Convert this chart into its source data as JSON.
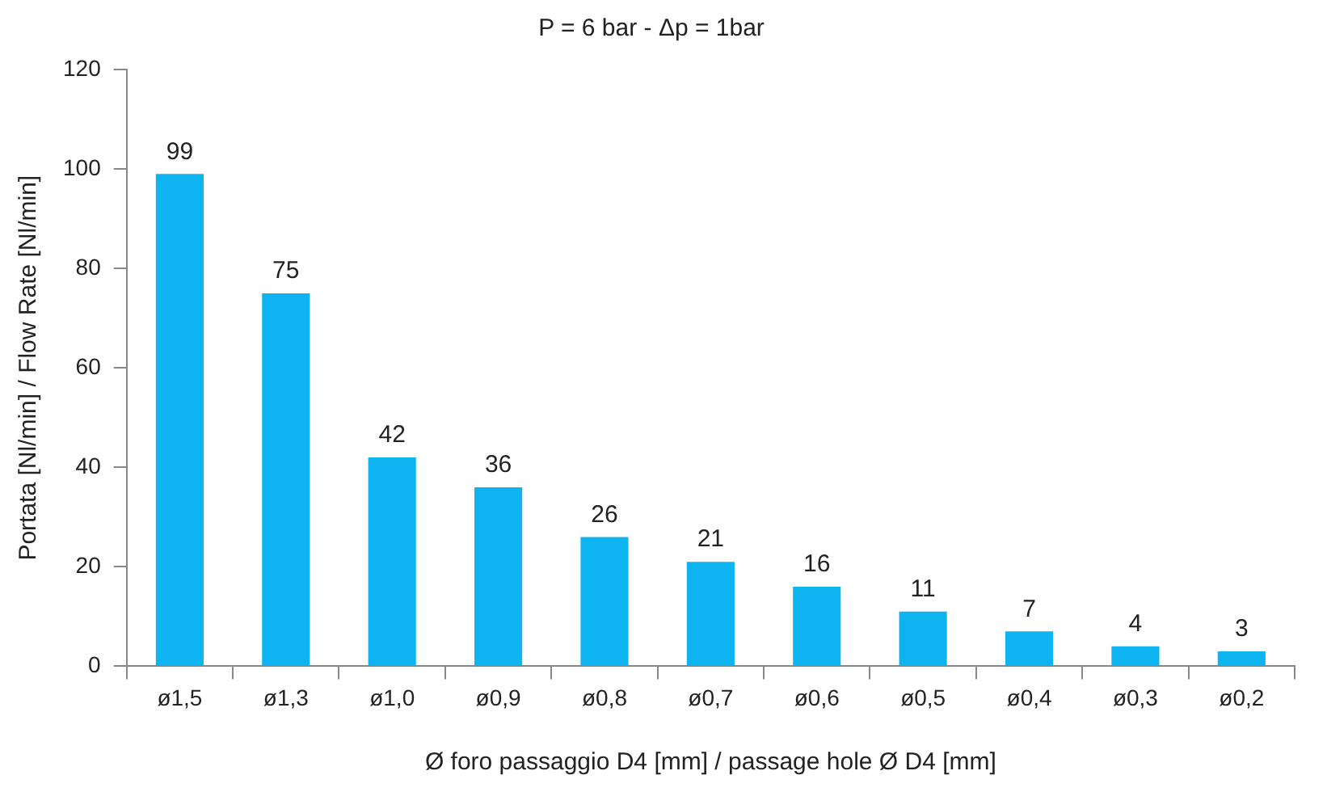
{
  "chart_data": {
    "type": "bar",
    "title": "P = 6 bar - Δp = 1bar",
    "xlabel": "Ø foro passaggio D4 [mm] / passage hole Ø D4 [mm]",
    "ylabel": "Portata [Nl/min] / Flow Rate [Nl/min]",
    "categories": [
      "ø1,5",
      "ø1,3",
      "ø1,0",
      "ø0,9",
      "ø0,8",
      "ø0,7",
      "ø0,6",
      "ø0,5",
      "ø0,4",
      "ø0,3",
      "ø0,2"
    ],
    "values": [
      99,
      75,
      42,
      36,
      26,
      21,
      16,
      11,
      7,
      4,
      3
    ],
    "color": "#0db4ef",
    "ylim": [
      0,
      120
    ],
    "yticks": [
      0,
      20,
      40,
      60,
      80,
      100,
      120
    ],
    "grid": false,
    "legend": false,
    "data_labels": true
  }
}
